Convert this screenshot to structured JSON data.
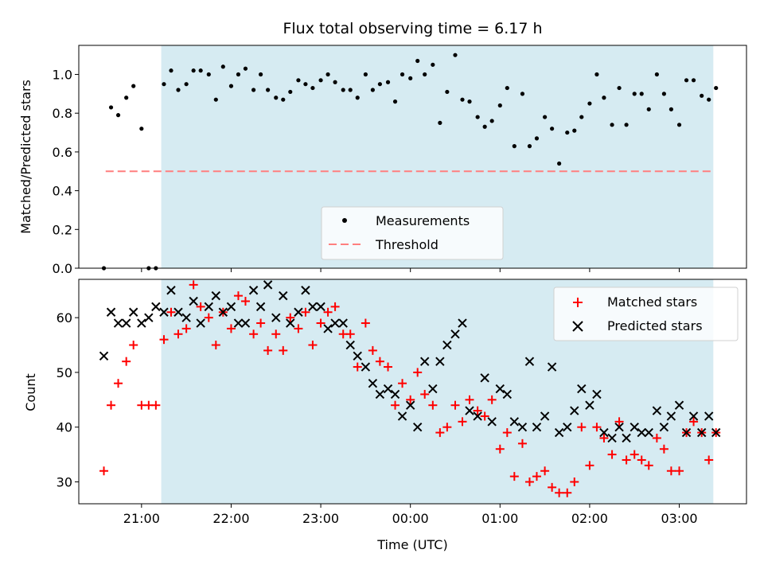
{
  "figure": {
    "title": "Flux total observing time = 6.17 h",
    "xlabel": "Time (UTC)"
  },
  "colors": {
    "background": "#ffffff",
    "shade": "#add8e6",
    "measurement": "#000000",
    "threshold": "#ff7f7f",
    "matched": "#ff0000",
    "predicted": "#000000"
  },
  "chart_data": [
    {
      "type": "scatter",
      "panel": "top",
      "title": "Flux total observing time = 6.17 h",
      "xlabel": "",
      "ylabel": "Matched/Predicted stars",
      "x_unit": "hours (UTC, continuing past midnight)",
      "xlim": [
        20.3,
        27.75
      ],
      "ylim": [
        0.0,
        1.15
      ],
      "yticks": [
        0.0,
        0.2,
        0.4,
        0.6,
        0.8,
        1.0
      ],
      "ytick_labels": [
        "0.0",
        "0.2",
        "0.4",
        "0.6",
        "0.8",
        "1.0"
      ],
      "xticks": [
        21,
        22,
        23,
        24,
        25,
        26,
        27
      ],
      "xtick_labels": [],
      "shaded_region": [
        21.22,
        27.38
      ],
      "legend": {
        "position": "lower center",
        "entries": [
          "Measurements",
          "Threshold"
        ]
      },
      "grid": false,
      "series": [
        {
          "name": "Measurements",
          "style": "dot",
          "x": [
            20.58,
            20.66,
            20.74,
            20.83,
            20.91,
            21.0,
            21.08,
            21.16,
            21.25,
            21.33,
            21.41,
            21.5,
            21.58,
            21.66,
            21.75,
            21.83,
            21.91,
            22.0,
            22.08,
            22.16,
            22.25,
            22.33,
            22.41,
            22.5,
            22.58,
            22.66,
            22.75,
            22.83,
            22.91,
            23.0,
            23.08,
            23.16,
            23.25,
            23.33,
            23.41,
            23.5,
            23.58,
            23.66,
            23.75,
            23.83,
            23.91,
            24.0,
            24.08,
            24.16,
            24.25,
            24.33,
            24.41,
            24.5,
            24.58,
            24.66,
            24.75,
            24.83,
            24.91,
            25.0,
            25.08,
            25.16,
            25.25,
            25.33,
            25.41,
            25.5,
            25.58,
            25.66,
            25.75,
            25.83,
            25.91,
            26.0,
            26.08,
            26.16,
            26.25,
            26.33,
            26.41,
            26.5,
            26.58,
            26.66,
            26.75,
            26.83,
            26.91,
            27.0,
            27.08,
            27.16,
            27.25,
            27.33,
            27.41
          ],
          "y": [
            0.0,
            0.83,
            0.79,
            0.88,
            0.94,
            0.72,
            0.0,
            0.0,
            0.95,
            1.02,
            0.92,
            0.95,
            1.02,
            1.02,
            1.0,
            0.87,
            1.04,
            0.94,
            1.0,
            1.03,
            0.92,
            1.0,
            0.92,
            0.88,
            0.87,
            0.91,
            0.97,
            0.95,
            0.93,
            0.97,
            1.0,
            0.96,
            0.92,
            0.92,
            0.88,
            1.0,
            0.92,
            0.95,
            0.96,
            0.86,
            1.0,
            0.98,
            1.07,
            1.0,
            1.05,
            0.75,
            0.91,
            1.1,
            0.87,
            0.86,
            0.78,
            0.73,
            0.76,
            0.84,
            0.93,
            0.63,
            0.9,
            0.63,
            0.67,
            0.78,
            0.72,
            0.54,
            0.7,
            0.71,
            0.78,
            0.85,
            1.0,
            0.88,
            0.74,
            0.93,
            0.74,
            0.9,
            0.9,
            0.82,
            1.0,
            0.9,
            0.82,
            0.74,
            0.97,
            0.97,
            0.89,
            0.87,
            0.93
          ]
        },
        {
          "name": "Threshold",
          "style": "dashed-line",
          "x": [
            20.6,
            27.36
          ],
          "y": [
            0.5,
            0.5
          ]
        }
      ]
    },
    {
      "type": "scatter",
      "panel": "bottom",
      "xlabel": "Time (UTC)",
      "ylabel": "Count",
      "x_unit": "hours (UTC, continuing past midnight)",
      "xlim": [
        20.3,
        27.75
      ],
      "ylim": [
        26,
        67
      ],
      "yticks": [
        30,
        40,
        50,
        60
      ],
      "ytick_labels": [
        "30",
        "40",
        "50",
        "60"
      ],
      "xticks": [
        21,
        22,
        23,
        24,
        25,
        26,
        27
      ],
      "xtick_labels": [
        "21:00",
        "22:00",
        "23:00",
        "00:00",
        "01:00",
        "02:00",
        "03:00"
      ],
      "shaded_region": [
        21.22,
        27.38
      ],
      "legend": {
        "position": "top-right",
        "entries": [
          "Matched stars",
          "Predicted stars"
        ]
      },
      "grid": false,
      "series": [
        {
          "name": "Matched stars",
          "marker": "+",
          "x": [
            20.58,
            20.66,
            20.74,
            20.83,
            20.91,
            21.0,
            21.08,
            21.16,
            21.25,
            21.33,
            21.41,
            21.5,
            21.58,
            21.66,
            21.75,
            21.83,
            21.91,
            22.0,
            22.08,
            22.16,
            22.25,
            22.33,
            22.41,
            22.5,
            22.58,
            22.66,
            22.75,
            22.83,
            22.91,
            23.0,
            23.08,
            23.16,
            23.25,
            23.33,
            23.41,
            23.5,
            23.58,
            23.66,
            23.75,
            23.83,
            23.91,
            24.0,
            24.08,
            24.16,
            24.25,
            24.33,
            24.41,
            24.5,
            24.58,
            24.66,
            24.75,
            24.83,
            24.91,
            25.0,
            25.08,
            25.16,
            25.25,
            25.33,
            25.41,
            25.5,
            25.58,
            25.66,
            25.75,
            25.83,
            25.91,
            26.0,
            26.08,
            26.16,
            26.25,
            26.33,
            26.41,
            26.5,
            26.58,
            26.66,
            26.75,
            26.83,
            26.91,
            27.0,
            27.08,
            27.16,
            27.25,
            27.33,
            27.41
          ],
          "y": [
            32,
            44,
            48,
            52,
            55,
            44,
            44,
            44,
            56,
            61,
            57,
            58,
            66,
            62,
            60,
            55,
            61,
            58,
            64,
            63,
            57,
            59,
            54,
            57,
            54,
            60,
            58,
            61,
            55,
            59,
            61,
            62,
            57,
            57,
            51,
            59,
            54,
            52,
            51,
            44,
            48,
            45,
            50,
            46,
            44,
            39,
            40,
            44,
            41,
            45,
            43,
            42,
            45,
            36,
            39,
            31,
            37,
            30,
            31,
            32,
            29,
            28,
            28,
            30,
            40,
            33,
            40,
            38,
            35,
            41,
            34,
            35,
            34,
            33,
            38,
            36,
            32,
            32,
            39,
            41,
            39,
            34,
            39
          ]
        },
        {
          "name": "Predicted stars",
          "marker": "x",
          "x": [
            20.58,
            20.66,
            20.74,
            20.83,
            20.91,
            21.0,
            21.08,
            21.16,
            21.25,
            21.33,
            21.41,
            21.5,
            21.58,
            21.66,
            21.75,
            21.83,
            21.91,
            22.0,
            22.08,
            22.16,
            22.25,
            22.33,
            22.41,
            22.5,
            22.58,
            22.66,
            22.75,
            22.83,
            22.91,
            23.0,
            23.08,
            23.16,
            23.25,
            23.33,
            23.41,
            23.5,
            23.58,
            23.66,
            23.75,
            23.83,
            23.91,
            24.0,
            24.08,
            24.16,
            24.25,
            24.33,
            24.41,
            24.5,
            24.58,
            24.66,
            24.75,
            24.83,
            24.91,
            25.0,
            25.08,
            25.16,
            25.25,
            25.33,
            25.41,
            25.5,
            25.58,
            25.66,
            25.75,
            25.83,
            25.91,
            26.0,
            26.08,
            26.16,
            26.25,
            26.33,
            26.41,
            26.5,
            26.58,
            26.66,
            26.75,
            26.83,
            26.91,
            27.0,
            27.08,
            27.16,
            27.25,
            27.33,
            27.41
          ],
          "y": [
            53,
            61,
            59,
            59,
            61,
            59,
            60,
            62,
            61,
            65,
            61,
            60,
            63,
            59,
            62,
            64,
            61,
            62,
            59,
            59,
            65,
            62,
            66,
            60,
            64,
            59,
            61,
            65,
            62,
            62,
            58,
            59,
            59,
            55,
            53,
            51,
            48,
            46,
            47,
            46,
            42,
            44,
            40,
            52,
            47,
            52,
            55,
            57,
            59,
            43,
            42,
            49,
            41,
            47,
            46,
            41,
            40,
            52,
            40,
            42,
            51,
            39,
            40,
            43,
            47,
            44,
            46,
            39,
            38,
            40,
            38,
            40,
            39,
            39,
            43,
            40,
            42,
            44,
            39,
            42,
            39,
            42,
            39
          ]
        }
      ]
    }
  ]
}
